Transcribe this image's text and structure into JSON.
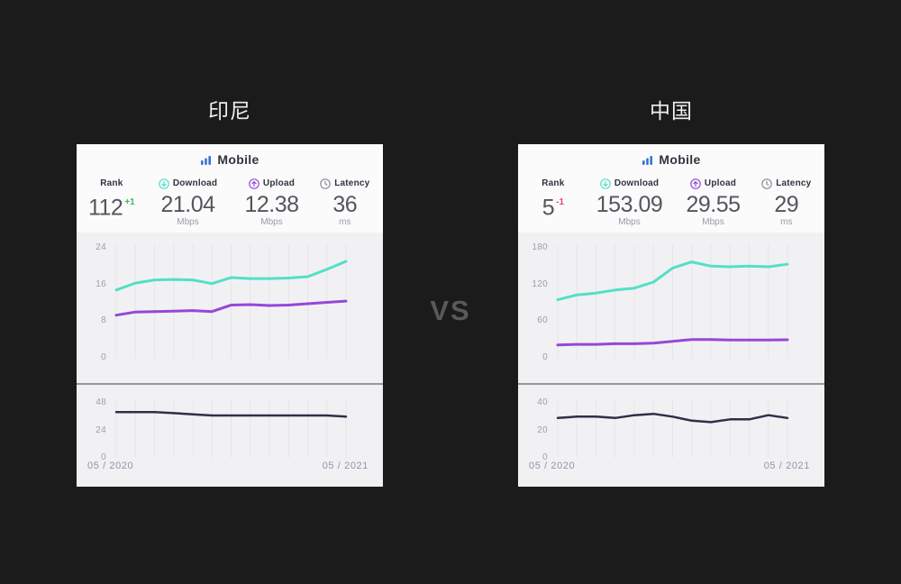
{
  "page": {
    "vs_label": "VS"
  },
  "colors": {
    "background": "#1b1b1b",
    "card_bg": "#f1f1f4",
    "card_top_bg": "#fbfbfc",
    "grid": "#e6e6ea",
    "download": "#54dfc6",
    "upload": "#9747d8",
    "latency": "#2e3048",
    "mobile_blue": "#3575d3",
    "positive": "#3cb95d",
    "negative": "#e8486b",
    "divider": "#97979c"
  },
  "cards": [
    {
      "title": "印尼",
      "header_label": "Mobile",
      "stats": [
        {
          "label": "Rank",
          "value": "112",
          "delta": "+1",
          "delta_color": "#3cb95d"
        },
        {
          "label": "Download",
          "value": "21.04",
          "unit": "Mbps",
          "icon": "download-icon"
        },
        {
          "label": "Upload",
          "value": "12.38",
          "unit": "Mbps",
          "icon": "upload-icon"
        },
        {
          "label": "Latency",
          "value": "36",
          "unit": "ms",
          "icon": "latency-icon"
        }
      ],
      "x_start": "05 / 2020",
      "x_end": "05 / 2021"
    },
    {
      "title": "中国",
      "header_label": "Mobile",
      "stats": [
        {
          "label": "Rank",
          "value": "5",
          "delta": "-1",
          "delta_color": "#e8486b"
        },
        {
          "label": "Download",
          "value": "153.09",
          "unit": "Mbps",
          "icon": "download-icon"
        },
        {
          "label": "Upload",
          "value": "29.55",
          "unit": "Mbps",
          "icon": "upload-icon"
        },
        {
          "label": "Latency",
          "value": "29",
          "unit": "ms",
          "icon": "latency-icon"
        }
      ],
      "x_start": "05 / 2020",
      "x_end": "05 / 2021"
    }
  ],
  "chart_data": [
    {
      "id": "indonesia-speed",
      "type": "line",
      "title": "印尼 Mobile speeds (Mbps)",
      "x": [
        "05/2020",
        "06/2020",
        "07/2020",
        "08/2020",
        "09/2020",
        "10/2020",
        "11/2020",
        "12/2020",
        "01/2021",
        "02/2021",
        "03/2021",
        "04/2021",
        "05/2021"
      ],
      "series": [
        {
          "name": "Download (Mbps)",
          "color": "#54dfc6",
          "width": 3,
          "values": [
            14.8,
            16.3,
            17.0,
            17.1,
            17.0,
            16.2,
            17.5,
            17.3,
            17.3,
            17.4,
            17.7,
            19.3,
            21.04
          ]
        },
        {
          "name": "Upload (Mbps)",
          "color": "#9747d8",
          "width": 3,
          "values": [
            9.3,
            10.0,
            10.1,
            10.2,
            10.3,
            10.1,
            11.5,
            11.6,
            11.4,
            11.5,
            11.8,
            12.1,
            12.38
          ]
        }
      ],
      "ylim": [
        0,
        24
      ],
      "yticks": [
        0,
        8,
        16,
        24
      ],
      "x_labels_visible": [
        "05 / 2020",
        "05 / 2021"
      ],
      "grid": true,
      "legend": "none"
    },
    {
      "id": "indonesia-latency",
      "type": "line",
      "title": "印尼 Mobile latency (ms)",
      "x": [
        "05/2020",
        "06/2020",
        "07/2020",
        "08/2020",
        "09/2020",
        "10/2020",
        "11/2020",
        "12/2020",
        "01/2021",
        "02/2021",
        "03/2021",
        "04/2021",
        "05/2021"
      ],
      "series": [
        {
          "name": "Latency (ms)",
          "color": "#2e3048",
          "width": 2.5,
          "values": [
            40,
            40,
            40,
            39,
            38,
            37,
            37,
            37,
            37,
            37,
            37,
            37,
            36
          ]
        }
      ],
      "ylim": [
        0,
        48
      ],
      "yticks": [
        0,
        24,
        48
      ],
      "x_labels_visible": [
        "05 / 2020",
        "05 / 2021"
      ],
      "grid": true,
      "legend": "none"
    },
    {
      "id": "china-speed",
      "type": "line",
      "title": "中国 Mobile speeds (Mbps)",
      "x": [
        "05/2020",
        "06/2020",
        "07/2020",
        "08/2020",
        "09/2020",
        "10/2020",
        "11/2020",
        "12/2020",
        "01/2021",
        "02/2021",
        "03/2021",
        "04/2021",
        "05/2021"
      ],
      "series": [
        {
          "name": "Download (Mbps)",
          "color": "#54dfc6",
          "width": 3,
          "values": [
            95,
            103,
            106,
            111,
            114,
            124,
            147,
            157,
            150,
            149,
            150,
            149,
            153.09
          ]
        },
        {
          "name": "Upload (Mbps)",
          "color": "#9747d8",
          "width": 3,
          "values": [
            21,
            22,
            22,
            23,
            23,
            24,
            27,
            30,
            30,
            29,
            29,
            29,
            29.55
          ]
        }
      ],
      "ylim": [
        0,
        180
      ],
      "yticks": [
        0,
        60,
        120,
        180
      ],
      "x_labels_visible": [
        "05 / 2020",
        "05 / 2021"
      ],
      "grid": true,
      "legend": "none"
    },
    {
      "id": "china-latency",
      "type": "line",
      "title": "中国 Mobile latency (ms)",
      "x": [
        "05/2020",
        "06/2020",
        "07/2020",
        "08/2020",
        "09/2020",
        "10/2020",
        "11/2020",
        "12/2020",
        "01/2021",
        "02/2021",
        "03/2021",
        "04/2021",
        "05/2021"
      ],
      "series": [
        {
          "name": "Latency (ms)",
          "color": "#2e3048",
          "width": 2.5,
          "values": [
            29,
            30,
            30,
            29,
            31,
            32,
            30,
            27,
            26,
            28,
            28,
            31,
            29
          ]
        }
      ],
      "ylim": [
        0,
        40
      ],
      "yticks": [
        0,
        20,
        40
      ],
      "x_labels_visible": [
        "05 / 2020",
        "05 / 2021"
      ],
      "grid": true,
      "legend": "none"
    }
  ]
}
